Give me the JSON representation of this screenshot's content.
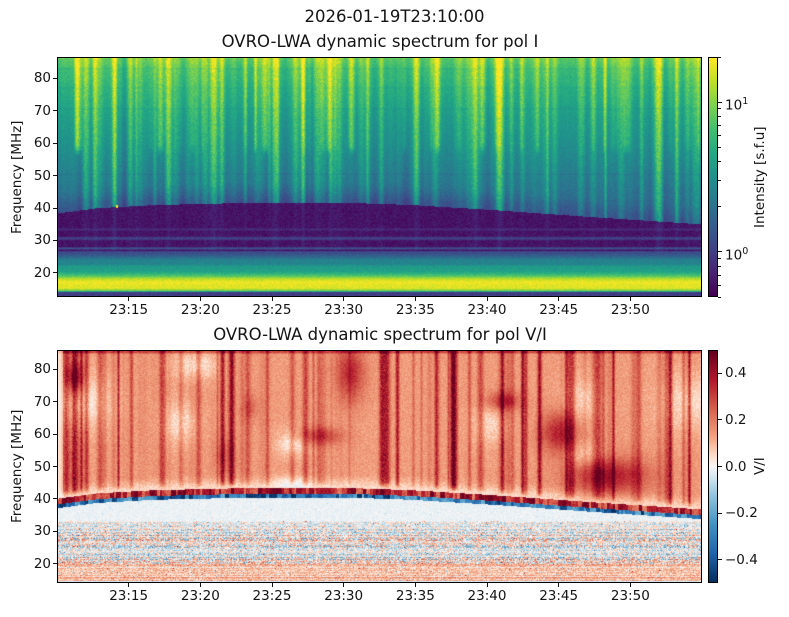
{
  "figure": {
    "suptitle": "2026-01-19T23:10:00"
  },
  "panels": [
    {
      "title": "OVRO-LWA dynamic spectrum for pol I",
      "ylabel": "Frequency [MHz]",
      "yticks_mhz": [
        20,
        30,
        40,
        50,
        60,
        70,
        80
      ],
      "colorbar": {
        "label": "Intensity [s.f.u]",
        "scale": "log",
        "vmin": 0.5,
        "vmax": 20,
        "major_tick_exponents": [
          1,
          0
        ]
      }
    },
    {
      "title": "OVRO-LWA dynamic spectrum for pol V/I",
      "ylabel": "Frequency [MHz]",
      "yticks_mhz": [
        20,
        30,
        40,
        50,
        60,
        70,
        80
      ],
      "colorbar": {
        "label": "V/I",
        "scale": "linear",
        "vmin": -0.5,
        "vmax": 0.5,
        "ticks": [
          0.4,
          0.2,
          0.0,
          -0.2,
          -0.4
        ]
      }
    }
  ],
  "chart_data": {
    "type": "heatmap",
    "time_axis": {
      "start": "23:10",
      "end": "23:55",
      "tick_labels": [
        "23:15",
        "23:20",
        "23:25",
        "23:30",
        "23:35",
        "23:40",
        "23:45",
        "23:50"
      ]
    },
    "panels": [
      {
        "name": "pol I",
        "colormap": "viridis",
        "scale": "log",
        "clim_sfu": [
          0.5,
          20
        ],
        "freq_range_mhz": [
          12.6,
          86.5
        ],
        "ionospheric_cutoff_curve_mhz": [
          [
            0,
            38.2
          ],
          [
            0.06,
            39.8
          ],
          [
            0.15,
            40.8
          ],
          [
            0.3,
            41.5
          ],
          [
            0.45,
            41.5
          ],
          [
            0.55,
            40.8
          ],
          [
            0.68,
            39.2
          ],
          [
            0.82,
            37.2
          ],
          [
            1,
            34.8
          ]
        ],
        "background_spectrum_sfu": [
          [
            42,
            1.8
          ],
          [
            46,
            2.0
          ],
          [
            52,
            2.4
          ],
          [
            60,
            3.0
          ],
          [
            68,
            3.6
          ],
          [
            76,
            4.6
          ],
          [
            83,
            5.8
          ],
          [
            86.5,
            7.5
          ]
        ],
        "absorption_band": {
          "bottom_mhz": 26.5,
          "level_sfu": 0.6
        },
        "low_band_spectrum_sfu": [
          [
            12.6,
            0.85
          ],
          [
            13.6,
            1.1
          ],
          [
            14.2,
            10
          ],
          [
            15,
            20
          ],
          [
            17.5,
            18
          ],
          [
            18.5,
            8
          ],
          [
            19.5,
            5
          ],
          [
            21,
            3.6
          ],
          [
            22.5,
            2.8
          ],
          [
            24,
            2.1
          ],
          [
            25.5,
            1.4
          ],
          [
            26.5,
            1.0
          ]
        ],
        "horizontal_stripes": [
          {
            "f_mhz": 83.3,
            "mult": 0.88,
            "halfwidth_mhz": 0.4
          },
          {
            "f_mhz": 77.3,
            "mult": 0.9,
            "halfwidth_mhz": 0.4
          },
          {
            "f_mhz": 70.8,
            "mult": 0.86,
            "halfwidth_mhz": 0.35
          },
          {
            "f_mhz": 50.4,
            "mult": 0.84,
            "halfwidth_mhz": 0.35
          },
          {
            "f_mhz": 33.2,
            "mult": 1.35,
            "halfwidth_mhz": 0.5
          },
          {
            "f_mhz": 30.4,
            "mult": 1.8,
            "halfwidth_mhz": 0.7
          },
          {
            "f_mhz": 27.3,
            "mult": 2.2,
            "halfwidth_mhz": 0.5
          }
        ],
        "vertical_streaks": {
          "count": 175,
          "max_mult": 3.4
        },
        "bright_point": {
          "t_frac": 0.09,
          "f_mhz": 40.3
        },
        "seed": 20260119
      },
      {
        "name": "pol V/I",
        "colormap": "RdBu_r",
        "scale": "linear",
        "clim": [
          -0.5,
          0.5
        ],
        "freq_range_mhz": [
          14.1,
          85.9
        ],
        "ionospheric_cutoff_curve_mhz": [
          [
            0,
            38.2
          ],
          [
            0.06,
            39.8
          ],
          [
            0.15,
            40.8
          ],
          [
            0.3,
            41.5
          ],
          [
            0.45,
            41.5
          ],
          [
            0.55,
            40.8
          ],
          [
            0.68,
            39.2
          ],
          [
            0.82,
            37.2
          ],
          [
            1,
            34.8
          ]
        ],
        "upper_region": {
          "base_vi": 0.14,
          "streak_count": 135,
          "streak_max_vi": 0.3,
          "top_edge_vi": 0.16,
          "blotch_count": 16,
          "white_patch": {
            "t_frac": 0.03,
            "f_mhz": 70,
            "t_radius": 0.05,
            "f_radius_mhz": 9,
            "amp_vi": -0.13
          }
        },
        "cutoff_rim": {
          "red_vi": 0.5,
          "red_width_mhz": 1.8,
          "blue_vi": -0.5,
          "blue_width_mhz": 1.2
        },
        "quiet_region": {
          "base_vi": -0.015,
          "bottom_mhz": 33
        },
        "speckle_band": {
          "top_mhz": 33,
          "bottom_mhz": 19.5,
          "max_amp_vi": 0.22
        },
        "bottom_band": {
          "base_vi": 0.1,
          "speckle_vi": 0.3
        },
        "seed": 774
      }
    ]
  }
}
